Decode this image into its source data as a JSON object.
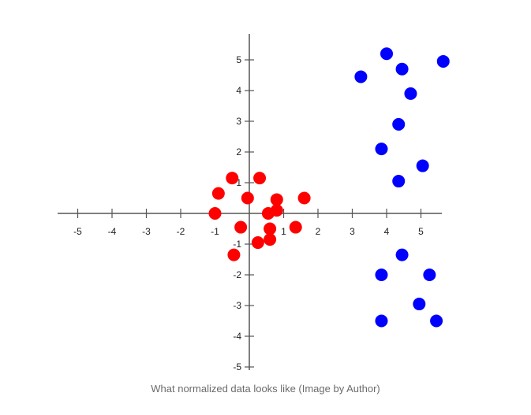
{
  "caption": "What normalized data looks like (Image by Author)",
  "chart_data": {
    "type": "scatter",
    "title": "",
    "xlabel": "",
    "ylabel": "",
    "xlim": [
      -5.6,
      5.7
    ],
    "ylim": [
      -5.1,
      5.7
    ],
    "x_ticks": [
      -5,
      -4,
      -3,
      -2,
      -1,
      1,
      2,
      3,
      4,
      5
    ],
    "x_tick_labels": [
      "-5",
      "-4",
      "-3",
      "-2",
      "-1",
      "1",
      "2",
      "3",
      "4",
      "5"
    ],
    "y_ticks": [
      -5,
      -4,
      -3,
      -2,
      -1,
      1,
      2,
      3,
      4,
      5
    ],
    "y_tick_labels": [
      "-5",
      "-4",
      "-3",
      "-2",
      "-1",
      "1",
      "2",
      "3",
      "4",
      "5"
    ],
    "grid": false,
    "axis_color": "#555555",
    "series": [
      {
        "color": "#ff0000",
        "points": [
          {
            "x": -0.5,
            "y": 1.15
          },
          {
            "x": 0.3,
            "y": 1.15
          },
          {
            "x": -0.9,
            "y": 0.65
          },
          {
            "x": -0.05,
            "y": 0.5
          },
          {
            "x": 0.8,
            "y": 0.45
          },
          {
            "x": 1.6,
            "y": 0.5
          },
          {
            "x": -1.0,
            "y": 0.0
          },
          {
            "x": 0.55,
            "y": 0.0
          },
          {
            "x": 0.8,
            "y": 0.1
          },
          {
            "x": -0.25,
            "y": -0.45
          },
          {
            "x": 0.6,
            "y": -0.5
          },
          {
            "x": 1.35,
            "y": -0.45
          },
          {
            "x": 0.6,
            "y": -0.85
          },
          {
            "x": 0.25,
            "y": -0.95
          },
          {
            "x": -0.45,
            "y": -1.35
          }
        ]
      },
      {
        "color": "#0000ff",
        "points": [
          {
            "x": 4.0,
            "y": 5.2
          },
          {
            "x": 5.65,
            "y": 4.95
          },
          {
            "x": 4.45,
            "y": 4.7
          },
          {
            "x": 3.25,
            "y": 4.45
          },
          {
            "x": 4.7,
            "y": 3.9
          },
          {
            "x": 4.35,
            "y": 2.9
          },
          {
            "x": 3.85,
            "y": 2.1
          },
          {
            "x": 5.05,
            "y": 1.55
          },
          {
            "x": 4.35,
            "y": 1.05
          },
          {
            "x": 4.45,
            "y": -1.35
          },
          {
            "x": 3.85,
            "y": -2.0
          },
          {
            "x": 5.25,
            "y": -2.0
          },
          {
            "x": 4.95,
            "y": -2.95
          },
          {
            "x": 3.85,
            "y": -3.5
          },
          {
            "x": 5.45,
            "y": -3.5
          }
        ]
      }
    ]
  }
}
